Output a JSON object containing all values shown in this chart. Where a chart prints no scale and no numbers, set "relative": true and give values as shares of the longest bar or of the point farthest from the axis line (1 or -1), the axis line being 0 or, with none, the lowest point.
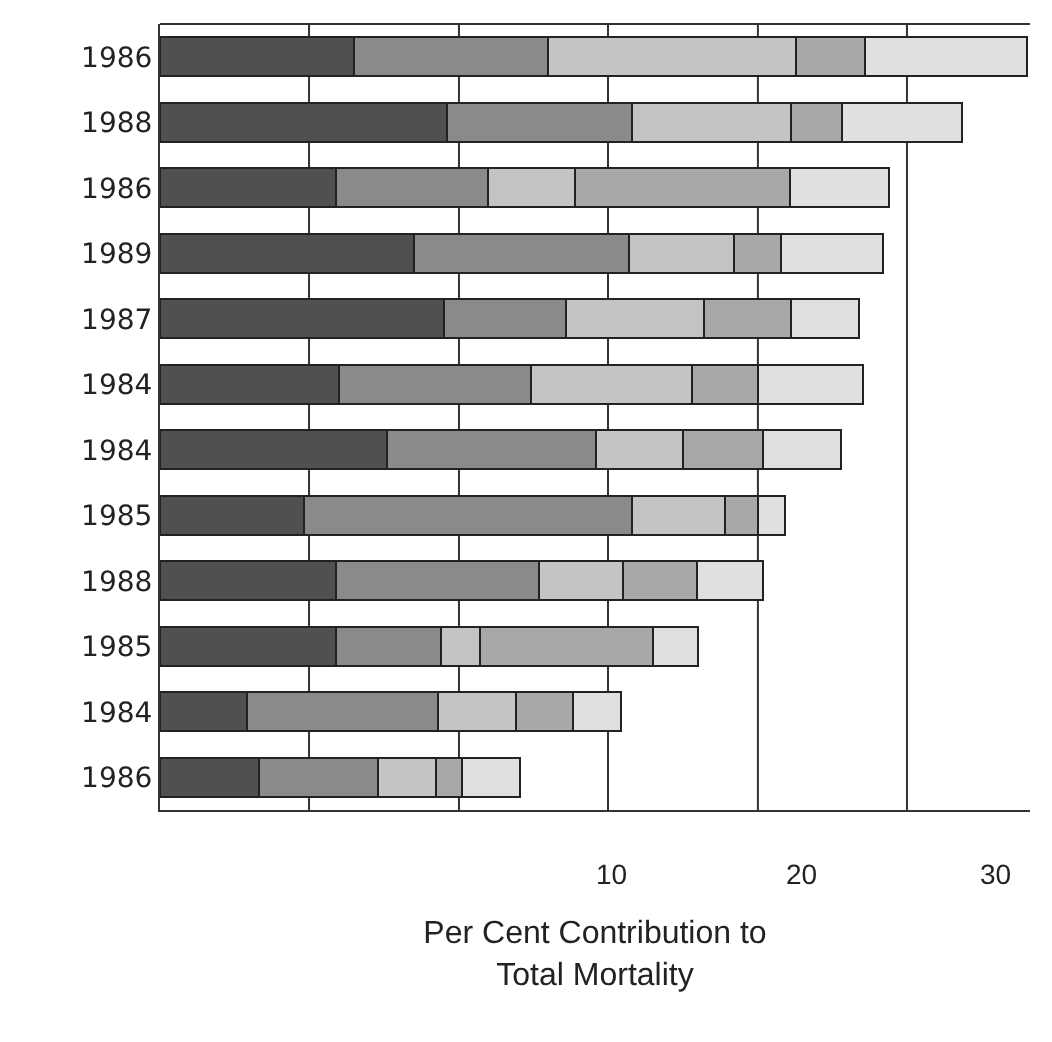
{
  "chart_data": {
    "type": "bar",
    "orientation": "horizontal",
    "stacked": true,
    "relative": true,
    "xlabel": "Per Cent Contribution to\nTotal Mortality",
    "annotations": [
      "10",
      "20",
      "30"
    ],
    "categories": [
      "1986",
      "1988",
      "1986",
      "1989",
      "1987",
      "1984",
      "1984",
      "1985",
      "1988",
      "1985",
      "1984",
      "1986"
    ],
    "series": [
      {
        "color": "#505050",
        "values": [
          0.224,
          0.331,
          0.203,
          0.293,
          0.328,
          0.207,
          0.262,
          0.166,
          0.203,
          0.203,
          0.1,
          0.114
        ]
      },
      {
        "color": "#8a8a8a",
        "values": [
          0.224,
          0.214,
          0.176,
          0.248,
          0.141,
          0.221,
          0.241,
          0.379,
          0.234,
          0.121,
          0.221,
          0.138
        ]
      },
      {
        "color": "#c4c4c4",
        "values": [
          0.286,
          0.183,
          0.1,
          0.121,
          0.159,
          0.186,
          0.1,
          0.107,
          0.097,
          0.045,
          0.09,
          0.066
        ]
      },
      {
        "color": "#a8a8a8",
        "values": [
          0.079,
          0.059,
          0.248,
          0.055,
          0.1,
          0.076,
          0.093,
          0.038,
          0.086,
          0.2,
          0.066,
          0.031
        ]
      },
      {
        "color": "#e0e0e0",
        "values": [
          0.187,
          0.138,
          0.114,
          0.117,
          0.079,
          0.121,
          0.09,
          0.031,
          0.076,
          0.052,
          0.055,
          0.066
        ]
      }
    ],
    "ref_lines": [
      {
        "axis": "x",
        "value": 0.172,
        "color": "#333333"
      },
      {
        "axis": "x",
        "value": 0.345,
        "color": "#333333"
      },
      {
        "axis": "x",
        "value": 0.517,
        "color": "#333333"
      },
      {
        "axis": "x",
        "value": 0.69,
        "color": "#333333"
      },
      {
        "axis": "x",
        "value": 0.862,
        "color": "#333333"
      }
    ],
    "tick_labels": "y"
  }
}
